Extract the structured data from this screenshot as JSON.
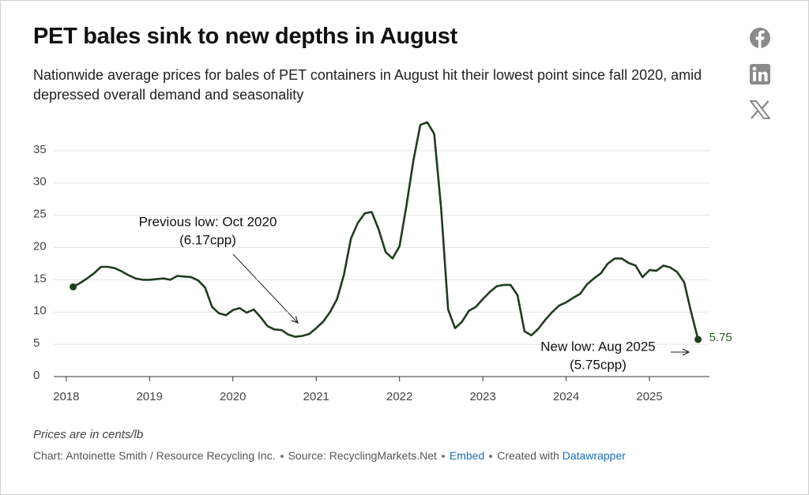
{
  "chart_data": {
    "type": "line",
    "title": "PET bales sink to new depths in August",
    "subtitle": "Nationwide average prices for bales of PET containers in August hit their lowest point since fall 2020, amid depressed overall demand and seasonality",
    "x": [
      "2018-02",
      "2018-03",
      "2018-04",
      "2018-05",
      "2018-06",
      "2018-07",
      "2018-08",
      "2018-09",
      "2018-10",
      "2018-11",
      "2018-12",
      "2019-01",
      "2019-02",
      "2019-03",
      "2019-04",
      "2019-05",
      "2019-06",
      "2019-07",
      "2019-08",
      "2019-09",
      "2019-10",
      "2019-11",
      "2019-12",
      "2020-01",
      "2020-02",
      "2020-03",
      "2020-04",
      "2020-05",
      "2020-06",
      "2020-07",
      "2020-08",
      "2020-09",
      "2020-10",
      "2020-11",
      "2020-12",
      "2021-01",
      "2021-02",
      "2021-03",
      "2021-04",
      "2021-05",
      "2021-06",
      "2021-07",
      "2021-08",
      "2021-09",
      "2021-10",
      "2021-11",
      "2021-12",
      "2022-01",
      "2022-02",
      "2022-03",
      "2022-04",
      "2022-05",
      "2022-06",
      "2022-07",
      "2022-08",
      "2022-09",
      "2022-10",
      "2022-11",
      "2022-12",
      "2023-01",
      "2023-02",
      "2023-03",
      "2023-04",
      "2023-05",
      "2023-06",
      "2023-07",
      "2023-08",
      "2023-09",
      "2023-10",
      "2023-11",
      "2023-12",
      "2024-01",
      "2024-02",
      "2024-03",
      "2024-04",
      "2024-05",
      "2024-06",
      "2024-07",
      "2024-08",
      "2024-09",
      "2024-10",
      "2024-11",
      "2024-12",
      "2025-01",
      "2025-02",
      "2025-03",
      "2025-04",
      "2025-05",
      "2025-06",
      "2025-07",
      "2025-08"
    ],
    "values": [
      13.9,
      14.5,
      15.2,
      16,
      17,
      17,
      16.8,
      16.3,
      15.7,
      15.2,
      15.0,
      15.0,
      15.1,
      15.2,
      15.0,
      15.6,
      15.5,
      15.4,
      14.9,
      13.8,
      10.8,
      9.8,
      9.5,
      10.3,
      10.6,
      9.9,
      10.4,
      9.2,
      7.8,
      7.3,
      7.2,
      6.5,
      6.17,
      6.3,
      6.6,
      7.5,
      8.5,
      10,
      12,
      15.8,
      21.4,
      23.8,
      25.3,
      25.5,
      22.8,
      19.3,
      18.3,
      20.2,
      26.5,
      33.5,
      39,
      39.4,
      37.6,
      26,
      10.4,
      7.5,
      8.5,
      10.2,
      10.8,
      12,
      13.1,
      14,
      14.2,
      14.2,
      12.6,
      7,
      6.4,
      7.4,
      8.8,
      10,
      11,
      11.5,
      12.2,
      12.8,
      14.3,
      15.2,
      16,
      17.5,
      18.3,
      18.3,
      17.6,
      17.2,
      15.4,
      16.5,
      16.4,
      17.2,
      16.9,
      16.2,
      14.6,
      10,
      5.75
    ],
    "color": "#1f3d1f",
    "xlim": [
      2017.85,
      2025.72
    ],
    "xticks": [
      2018,
      2019,
      2020,
      2021,
      2022,
      2023,
      2024,
      2025
    ],
    "ylim": [
      0,
      40
    ],
    "yticks": [
      0,
      5,
      10,
      15,
      20,
      25,
      30,
      35
    ],
    "grid": true,
    "annotations": [
      {
        "lines": [
          "Previous low: Oct 2020",
          "(6.17cpp)"
        ]
      },
      {
        "lines": [
          "New low: Aug 2025",
          "(5.75cpp)"
        ]
      }
    ],
    "notes": "Prices are in cents/lb",
    "byline": "Chart: Antoinette Smith / Resource Recycling Inc.",
    "source": "Source: RecyclingMarkets.Net",
    "embed": "Embed",
    "credit": "Created with",
    "credit_link": "Datawrapper"
  }
}
